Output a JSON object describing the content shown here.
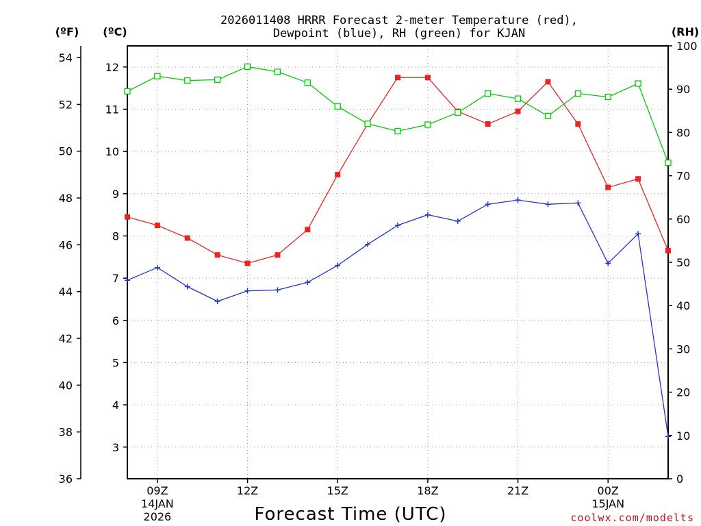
{
  "chart_data": {
    "type": "line",
    "title_line1": "2026011408 HRRR Forecast 2-meter Temperature (red),",
    "title_line2": "Dewpoint (blue), RH (green) for KJAN",
    "xlabel": "Forecast Time (UTC)",
    "credit": "coolwx.com/modelts",
    "units": {
      "fahrenheit": "(ºF)",
      "celsius": "(ºC)",
      "rh": "(RH)"
    },
    "x_hours_since_08z": [
      0,
      1,
      2,
      3,
      4,
      5,
      6,
      7,
      8,
      9,
      10,
      11,
      12,
      13,
      14,
      15,
      16,
      17,
      18
    ],
    "x_ticks": [
      {
        "hour": 1,
        "line1": "09Z",
        "line2": "14JAN",
        "line3": "2026"
      },
      {
        "hour": 4,
        "line1": "12Z"
      },
      {
        "hour": 7,
        "line1": "15Z"
      },
      {
        "hour": 10,
        "line1": "18Z"
      },
      {
        "hour": 13,
        "line1": "21Z"
      },
      {
        "hour": 16,
        "line1": "00Z",
        "line2": "15JAN"
      }
    ],
    "celsius_axis": {
      "range": [
        2.25,
        12.5
      ],
      "ticks": [
        "3",
        "4",
        "5",
        "6",
        "7",
        "8",
        "9",
        "10",
        "11",
        "12"
      ]
    },
    "fahrenheit_axis": {
      "range": [
        36,
        54.5
      ],
      "ticks": [
        "36",
        "38",
        "40",
        "42",
        "44",
        "46",
        "48",
        "50",
        "52",
        "54"
      ]
    },
    "rh_axis": {
      "range": [
        0,
        100
      ],
      "ticks": [
        "0",
        "10",
        "20",
        "30",
        "40",
        "50",
        "60",
        "70",
        "80",
        "90",
        "100"
      ]
    },
    "series": [
      {
        "name": "2-meter Temperature",
        "unit": "°C",
        "color": "#ee2222",
        "marker": "filled-square",
        "values": [
          8.45,
          8.25,
          7.95,
          7.55,
          7.35,
          7.55,
          8.15,
          9.45,
          10.65,
          11.75,
          11.75,
          10.95,
          10.65,
          10.95,
          11.65,
          10.65,
          9.15,
          9.35,
          7.65
        ]
      },
      {
        "name": "Dewpoint",
        "unit": "°C",
        "color": "#2233dd",
        "marker": "plus",
        "values": [
          6.95,
          7.25,
          6.8,
          6.45,
          6.7,
          6.72,
          6.9,
          7.3,
          7.8,
          8.25,
          8.5,
          8.35,
          8.75,
          8.85,
          8.75,
          8.78,
          7.35,
          8.05,
          3.25
        ]
      },
      {
        "name": "RH",
        "unit": "%",
        "color": "#00cc00",
        "marker": "open-square",
        "values": [
          89.5,
          93,
          92,
          92.2,
          95.2,
          94,
          91.5,
          86,
          82,
          80.3,
          81.8,
          84.6,
          89,
          87.8,
          83.8,
          89,
          88.2,
          91.3,
          73
        ]
      }
    ]
  }
}
